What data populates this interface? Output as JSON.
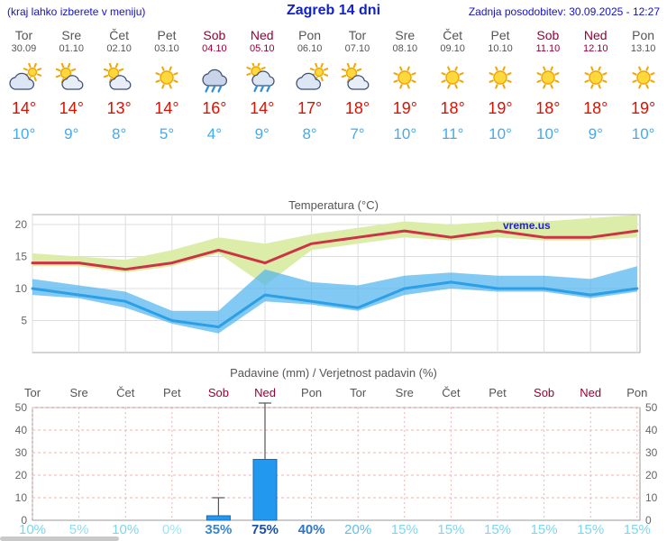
{
  "header": {
    "left_note": "(kraj lahko izberete v meniju)",
    "title": "Zagreb 14 dni",
    "updated": "Zadnja posodobitev: 30.09.2025 - 12:27"
  },
  "watermark": "vreme.us",
  "colors": {
    "header_blue": "#1111cc",
    "weekday_text": "#555555",
    "weekend_text": "#990033",
    "high_temp_text": "#dd1100",
    "low_temp_text": "#44aaee",
    "chart_red_line": "#cc3344",
    "chart_blue_line": "#2d9fe6",
    "band_green": "#dcedaa",
    "band_blue": "#4db4ee",
    "bar_fill": "#2299ee",
    "bar_border": "#1668b8",
    "grid_gray": "#dddddd",
    "grid_pink": "#eeb4b4"
  },
  "days": [
    {
      "name": "Tor",
      "date": "30.09",
      "weekend": false,
      "icon": "cloudy",
      "high": "14°",
      "low": "10°",
      "prob": "10%",
      "prob_color": "#7cd7ee",
      "prob_bold": false
    },
    {
      "name": "Sre",
      "date": "01.10",
      "weekend": false,
      "icon": "partly-cloudy",
      "high": "14°",
      "low": "9°",
      "prob": "5%",
      "prob_color": "#8edff2",
      "prob_bold": false
    },
    {
      "name": "Čet",
      "date": "02.10",
      "weekend": false,
      "icon": "partly-cloudy",
      "high": "13°",
      "low": "8°",
      "prob": "10%",
      "prob_color": "#7cd7ee",
      "prob_bold": false
    },
    {
      "name": "Pet",
      "date": "03.10",
      "weekend": false,
      "icon": "sun",
      "high": "14°",
      "low": "5°",
      "prob": "0%",
      "prob_color": "#9ae4f4",
      "prob_bold": false
    },
    {
      "name": "Sob",
      "date": "04.10",
      "weekend": true,
      "icon": "rain",
      "high": "16°",
      "low": "4°",
      "prob": "35%",
      "prob_color": "#3b86c9",
      "prob_bold": true
    },
    {
      "name": "Ned",
      "date": "05.10",
      "weekend": true,
      "icon": "sun-rain",
      "high": "14°",
      "low": "9°",
      "prob": "75%",
      "prob_color": "#1c4fa8",
      "prob_bold": true
    },
    {
      "name": "Pon",
      "date": "06.10",
      "weekend": false,
      "icon": "cloudy",
      "high": "17°",
      "low": "8°",
      "prob": "40%",
      "prob_color": "#2e76c4",
      "prob_bold": true
    },
    {
      "name": "Tor",
      "date": "07.10",
      "weekend": false,
      "icon": "partly-cloudy",
      "high": "18°",
      "low": "7°",
      "prob": "20%",
      "prob_color": "#5fc0e6",
      "prob_bold": false
    },
    {
      "name": "Sre",
      "date": "08.10",
      "weekend": false,
      "icon": "sun",
      "high": "19°",
      "low": "10°",
      "prob": "15%",
      "prob_color": "#7cd7ee",
      "prob_bold": false
    },
    {
      "name": "Čet",
      "date": "09.10",
      "weekend": false,
      "icon": "sun",
      "high": "18°",
      "low": "11°",
      "prob": "15%",
      "prob_color": "#7cd7ee",
      "prob_bold": false
    },
    {
      "name": "Pet",
      "date": "10.10",
      "weekend": false,
      "icon": "sun",
      "high": "19°",
      "low": "10°",
      "prob": "15%",
      "prob_color": "#7cd7ee",
      "prob_bold": false
    },
    {
      "name": "Sob",
      "date": "11.10",
      "weekend": true,
      "icon": "sun",
      "high": "18°",
      "low": "10°",
      "prob": "15%",
      "prob_color": "#7cd7ee",
      "prob_bold": false
    },
    {
      "name": "Ned",
      "date": "12.10",
      "weekend": true,
      "icon": "sun",
      "high": "18°",
      "low": "9°",
      "prob": "15%",
      "prob_color": "#7cd7ee",
      "prob_bold": false
    },
    {
      "name": "Pon",
      "date": "13.10",
      "weekend": false,
      "icon": "sun",
      "high": "19°",
      "low": "10°",
      "prob": "15%",
      "prob_color": "#7cd7ee",
      "prob_bold": false
    }
  ],
  "chart_data": [
    {
      "type": "line",
      "title": "Temperatura (°C)",
      "categories": [
        "Tor 30.09",
        "Sre 01.10",
        "Čet 02.10",
        "Pet 03.10",
        "Sob 04.10",
        "Ned 05.10",
        "Pon 06.10",
        "Tor 07.10",
        "Sre 08.10",
        "Čet 09.10",
        "Pet 10.10",
        "Sob 11.10",
        "Ned 12.10",
        "Pon 13.10"
      ],
      "ylim": [
        0,
        22.5
      ],
      "yticks": [
        5,
        10,
        15,
        20
      ],
      "grid": true,
      "series": [
        {
          "name": "razpon max – zgornja meja",
          "values": [
            15.5,
            15,
            14.5,
            16,
            18,
            17,
            18.5,
            19.5,
            20.5,
            20,
            20.5,
            20.5,
            21,
            21.5
          ]
        },
        {
          "name": "razpon max – spodnja meja",
          "values": [
            13.5,
            13.5,
            12.5,
            13.5,
            15.5,
            10.5,
            16,
            17,
            18,
            17.5,
            18,
            17.5,
            17.5,
            18
          ]
        },
        {
          "name": "najvišja temperatura",
          "values": [
            14,
            14,
            13,
            14,
            16,
            14,
            17,
            18,
            19,
            18,
            19,
            18,
            18,
            19
          ]
        },
        {
          "name": "razpon min – zgornja meja",
          "values": [
            11.5,
            10.5,
            9.5,
            6.5,
            6.5,
            13,
            11,
            10.5,
            12,
            12.5,
            12,
            12,
            11.5,
            13.5
          ]
        },
        {
          "name": "najnižja temperatura",
          "values": [
            10,
            9,
            8,
            5,
            4,
            9,
            8,
            7,
            10,
            11,
            10,
            10,
            9,
            10
          ]
        },
        {
          "name": "razpon min – spodnja meja",
          "values": [
            9,
            8.5,
            7,
            4.5,
            3,
            8,
            7.5,
            6.5,
            9,
            10,
            9.5,
            9.5,
            8.5,
            9.5
          ]
        }
      ]
    },
    {
      "type": "bar",
      "title": "Padavine (mm) / Verjetnost padavin (%)",
      "categories": [
        "Tor",
        "Sre",
        "Čet",
        "Pet",
        "Sob",
        "Ned",
        "Pon",
        "Tor",
        "Sre",
        "Čet",
        "Pet",
        "Sob",
        "Ned",
        "Pon"
      ],
      "values_mm": [
        0,
        0,
        0,
        0,
        2,
        27,
        0,
        0,
        0,
        0,
        0,
        0,
        0,
        0
      ],
      "whisker_max_mm": [
        0,
        0,
        0,
        0,
        10,
        52,
        0,
        0,
        0,
        0,
        0,
        0,
        0,
        0
      ],
      "probability_pct": [
        10,
        5,
        10,
        0,
        35,
        75,
        40,
        20,
        15,
        15,
        15,
        15,
        15,
        15
      ],
      "ylim": [
        0,
        52
      ],
      "yticks": [
        0,
        10,
        20,
        30,
        40,
        50
      ],
      "grid": true
    }
  ]
}
